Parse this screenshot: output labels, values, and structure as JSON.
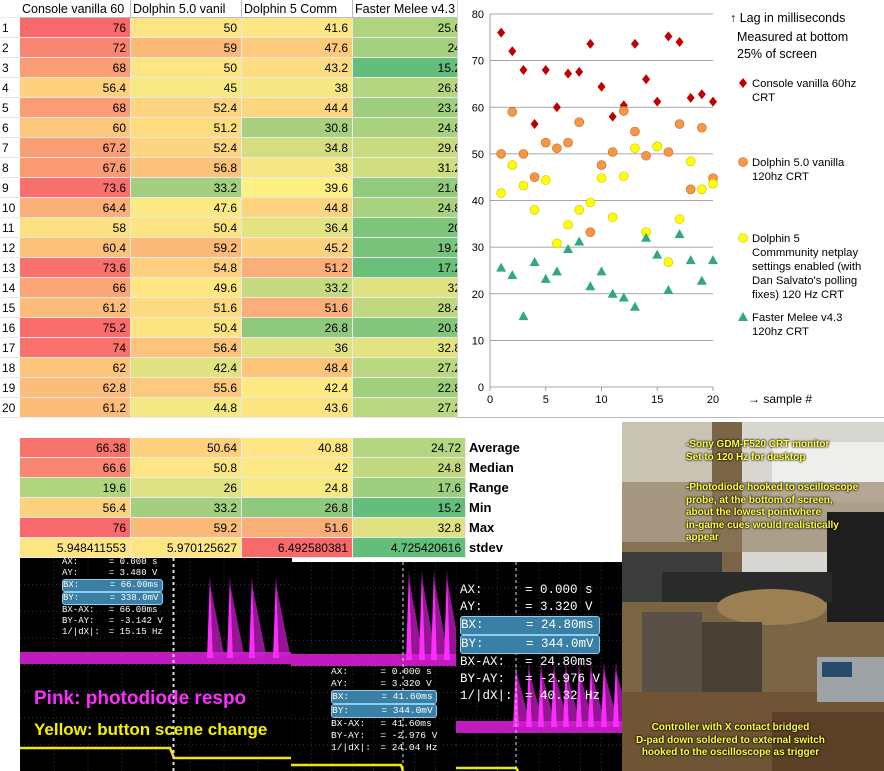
{
  "table": {
    "headers": [
      "Console vanilla 60",
      "Dolphin 5.0 vanil",
      "Dolphin 5 Comm",
      "Faster Melee v4.3"
    ],
    "rows": [
      {
        "n": "1",
        "v": [
          "76",
          "50",
          "41.6",
          "25.6"
        ]
      },
      {
        "n": "2",
        "v": [
          "72",
          "59",
          "47.6",
          "24"
        ]
      },
      {
        "n": "3",
        "v": [
          "68",
          "50",
          "43.2",
          "15.2"
        ]
      },
      {
        "n": "4",
        "v": [
          "56.4",
          "45",
          "38",
          "26.8"
        ]
      },
      {
        "n": "5",
        "v": [
          "68",
          "52.4",
          "44.4",
          "23.2"
        ]
      },
      {
        "n": "6",
        "v": [
          "60",
          "51.2",
          "30.8",
          "24.8"
        ]
      },
      {
        "n": "7",
        "v": [
          "67.2",
          "52.4",
          "34.8",
          "29.6"
        ]
      },
      {
        "n": "8",
        "v": [
          "67.6",
          "56.8",
          "38",
          "31.2"
        ]
      },
      {
        "n": "9",
        "v": [
          "73.6",
          "33.2",
          "39.6",
          "21.6"
        ]
      },
      {
        "n": "10",
        "v": [
          "64.4",
          "47.6",
          "44.8",
          "24.8"
        ]
      },
      {
        "n": "11",
        "v": [
          "58",
          "50.4",
          "36.4",
          "20"
        ]
      },
      {
        "n": "12",
        "v": [
          "60.4",
          "59.2",
          "45.2",
          "19.2"
        ]
      },
      {
        "n": "13",
        "v": [
          "73.6",
          "54.8",
          "51.2",
          "17.2"
        ]
      },
      {
        "n": "14",
        "v": [
          "66",
          "49.6",
          "33.2",
          "32"
        ]
      },
      {
        "n": "15",
        "v": [
          "61.2",
          "51.6",
          "51.6",
          "28.4"
        ]
      },
      {
        "n": "16",
        "v": [
          "75.2",
          "50.4",
          "26.8",
          "20.8"
        ]
      },
      {
        "n": "17",
        "v": [
          "74",
          "56.4",
          "36",
          "32.8"
        ]
      },
      {
        "n": "18",
        "v": [
          "62",
          "42.4",
          "48.4",
          "27.2"
        ]
      },
      {
        "n": "19",
        "v": [
          "62.8",
          "55.6",
          "42.4",
          "22.8"
        ]
      },
      {
        "n": "20",
        "v": [
          "61.2",
          "44.8",
          "43.6",
          "27.2"
        ]
      }
    ],
    "colors": {
      "console": [
        "#f8696b",
        "#f98670",
        "#fa9d74",
        "#fdd17e",
        "#fa9d74",
        "#fcc77c",
        "#fa9f74",
        "#fa9b74",
        "#f8716c",
        "#fbb079",
        "#fde07f",
        "#fcc27b",
        "#f8716c",
        "#faa676",
        "#fcbd7a",
        "#f86d6c",
        "#f8736c",
        "#fcc47b",
        "#fcbd7a",
        "#fcbd7a"
      ],
      "dolphin50": [
        "#fde583",
        "#fbba79",
        "#fde583",
        "#f6e883",
        "#fdd47f",
        "#fddc81",
        "#fdd47f",
        "#fcc27b",
        "#a5cf80",
        "#fbea83",
        "#fde482",
        "#fbba79",
        "#fdcf7e",
        "#fee783",
        "#fdd981",
        "#fde482",
        "#fcc47b",
        "#e1e282",
        "#fdc97d",
        "#f3e883"
      ],
      "dolphin5c": [
        "#fde683",
        "#fdc97d",
        "#fddc81",
        "#f5e783",
        "#fdd67f",
        "#a8d080",
        "#d4de81",
        "#f5e783",
        "#fef083",
        "#fdd47f",
        "#e3e382",
        "#fdd27f",
        "#fbaf78",
        "#c7da81",
        "#fbaf78",
        "#8fc97d",
        "#e1e282",
        "#fdc47b",
        "#fdea83",
        "#fde482"
      ],
      "faster": [
        "#afd47f",
        "#a5d17e",
        "#63be7b",
        "#b5d680",
        "#9fcf7e",
        "#a9d27f",
        "#c9db81",
        "#d0de81",
        "#92cb7d",
        "#a9d27f",
        "#7ec57c",
        "#78c37c",
        "#6ac07b",
        "#dee282",
        "#c0d980",
        "#83c77c",
        "#e3e382",
        "#bad781",
        "#a0cf7e",
        "#bad781"
      ]
    },
    "stat_colors": {
      "Average": [
        "#f8736c",
        "#fdd17e",
        "#fde683",
        "#b5d680"
      ],
      "Median": [
        "#f98670",
        "#fde583",
        "#fde983",
        "#c2d980"
      ],
      "Range": [
        "#b1d47f",
        "#dfe282",
        "#f8e983",
        "#9fcf7e"
      ],
      "Min": [
        "#fdd17e",
        "#a5cf80",
        "#8fc97d",
        "#63be7b"
      ],
      "Max": [
        "#f8696b",
        "#fbba79",
        "#fbaf78",
        "#dee282"
      ],
      "stdev": [
        "#fde583",
        "#fde583",
        "#f8696b",
        "#63be7b"
      ]
    }
  },
  "stats": {
    "labels": [
      "Average",
      "Median",
      "Range",
      "Min",
      "Max",
      "stdev"
    ],
    "values": [
      [
        "66.38",
        "50.64",
        "40.88",
        "24.72"
      ],
      [
        "66.6",
        "50.8",
        "42",
        "24.8"
      ],
      [
        "19.6",
        "26",
        "24.8",
        "17.6"
      ],
      [
        "56.4",
        "33.2",
        "26.8",
        "15.2"
      ],
      [
        "76",
        "59.2",
        "51.6",
        "32.8"
      ],
      [
        "5.948411553",
        "5.970125627",
        "6.492580381",
        "4.725420616"
      ]
    ]
  },
  "chart_data": {
    "type": "scatter",
    "title": "",
    "ylim": [
      0,
      80
    ],
    "xlim": [
      0,
      20
    ],
    "yticks": [
      "0",
      "10",
      "20",
      "30",
      "40",
      "50",
      "60",
      "70",
      "80"
    ],
    "xticks": [
      "0",
      "5",
      "10",
      "15",
      "20"
    ],
    "xlabel": "→ sample #",
    "annotation": [
      "↑ Lag in milliseconds",
      "Measured at bottom",
      "25% of screen"
    ],
    "grid": "horizontal",
    "series": [
      {
        "name": "Console vanilla 60hz CRT",
        "marker": "diamond",
        "color": "#c00000",
        "x": [
          1,
          2,
          3,
          4,
          5,
          6,
          7,
          8,
          9,
          10,
          11,
          12,
          13,
          14,
          15,
          16,
          17,
          18,
          19,
          20
        ],
        "y": [
          76,
          72,
          68,
          56.4,
          68,
          60,
          67.2,
          67.6,
          73.6,
          64.4,
          58,
          60.4,
          73.6,
          66,
          61.2,
          75.2,
          74,
          62,
          62.8,
          61.2
        ]
      },
      {
        "name": "Dolphin 5.0 vanilla 120hz CRT",
        "marker": "circle",
        "color": "#f79646",
        "x": [
          1,
          2,
          3,
          4,
          5,
          6,
          7,
          8,
          9,
          10,
          11,
          12,
          13,
          14,
          15,
          16,
          17,
          18,
          19,
          20
        ],
        "y": [
          50,
          59,
          50,
          45,
          52.4,
          51.2,
          52.4,
          56.8,
          33.2,
          47.6,
          50.4,
          59.2,
          54.8,
          49.6,
          51.6,
          50.4,
          56.4,
          42.4,
          55.6,
          44.8
        ]
      },
      {
        "name": "Dolphin 5 Commmunity netplay settings enabled (with Dan Salvato's polling fixes) 120 Hz CRT",
        "marker": "circle",
        "color": "#ffff00",
        "x": [
          1,
          2,
          3,
          4,
          5,
          6,
          7,
          8,
          9,
          10,
          11,
          12,
          13,
          14,
          15,
          16,
          17,
          18,
          19,
          20
        ],
        "y": [
          41.6,
          47.6,
          43.2,
          38,
          44.4,
          30.8,
          34.8,
          38,
          39.6,
          44.8,
          36.4,
          45.2,
          51.2,
          33.2,
          51.6,
          26.8,
          36,
          48.4,
          42.4,
          43.6
        ]
      },
      {
        "name": "Faster Melee v4.3 120hz CRT",
        "marker": "triangle",
        "color": "#31a883",
        "x": [
          1,
          2,
          3,
          4,
          5,
          6,
          7,
          8,
          9,
          10,
          11,
          12,
          13,
          14,
          15,
          16,
          17,
          18,
          19,
          20
        ],
        "y": [
          25.6,
          24,
          15.2,
          26.8,
          23.2,
          24.8,
          29.6,
          31.2,
          21.6,
          24.8,
          20,
          19.2,
          17.2,
          32,
          28.4,
          20.8,
          32.8,
          27.2,
          22.8,
          27.2
        ]
      }
    ]
  },
  "scope1": {
    "lines": [
      {
        "k": "AX:",
        "v": "0.000 s",
        "hl": false
      },
      {
        "k": "AY:",
        "v": "3.480 V",
        "hl": false
      },
      {
        "k": "BX:",
        "v": "66.00ms",
        "hl": true
      },
      {
        "k": "BY:",
        "v": "338.0mV",
        "hl": true
      },
      {
        "k": "BX-AX:",
        "v": "66.00ms",
        "hl": false
      },
      {
        "k": "BY-AY:",
        "v": "-3.142 V",
        "hl": false
      },
      {
        "k": "1/|dX|:",
        "v": "15.15 Hz",
        "hl": false
      }
    ],
    "caption_pink": "Pink: photodiode respo",
    "caption_yellow": "Yellow: button  scene change"
  },
  "scope2": {
    "lines": [
      {
        "k": "AX:",
        "v": "0.000 s",
        "hl": false
      },
      {
        "k": "AY:",
        "v": "3.320 V",
        "hl": false
      },
      {
        "k": "BX:",
        "v": "41.60ms",
        "hl": true
      },
      {
        "k": "BY:",
        "v": "344.0mV",
        "hl": true
      },
      {
        "k": "BX-AX:",
        "v": "41.60ms",
        "hl": false
      },
      {
        "k": "BY-AY:",
        "v": "-2.976 V",
        "hl": false
      },
      {
        "k": "1/|dX|:",
        "v": "24.04 Hz",
        "hl": false
      }
    ]
  },
  "scope3": {
    "lines": [
      {
        "k": "AX:",
        "v": "0.000 s",
        "hl": false
      },
      {
        "k": "AY:",
        "v": "3.320 V",
        "hl": false
      },
      {
        "k": "BX:",
        "v": "24.80ms",
        "hl": true
      },
      {
        "k": "BY:",
        "v": "344.0mV",
        "hl": true
      },
      {
        "k": "BX-AX:",
        "v": "24.80ms",
        "hl": false
      },
      {
        "k": "BY-AY:",
        "v": "-2.976 V",
        "hl": false
      },
      {
        "k": "1/|dX|:",
        "v": "40.32 Hz",
        "hl": false
      }
    ]
  },
  "photo": {
    "note1": "-Sony GDM-F520 CRT monitor\nSet to 120 Hz for desktop",
    "note2": "-Photodiode hooked to oscilloscope\nprobe, at the bottom of screen,\nabout the lowest pointwhere\nin-game cues would realistically\nappear",
    "note3": "Controller with X contact bridged\nD-pad down soldered to external switch\nhooked to the oscilloscope as trigger"
  }
}
